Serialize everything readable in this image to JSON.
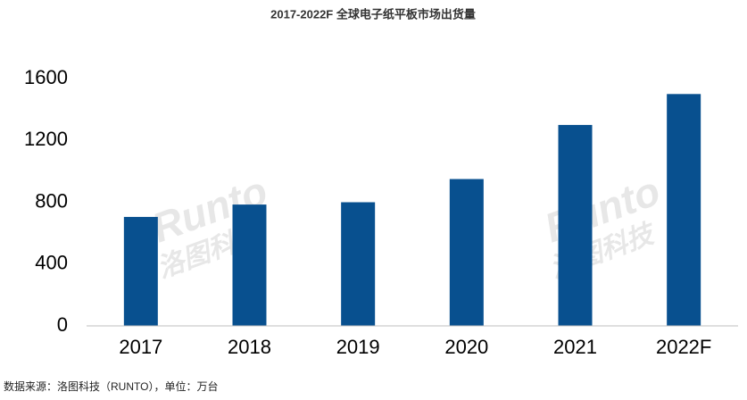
{
  "chart_data": {
    "type": "bar",
    "title": "2017-2022F 全球电子纸平板市场出货量",
    "categories": [
      "2017",
      "2018",
      "2019",
      "2020",
      "2021",
      "2022F"
    ],
    "values": [
      705,
      785,
      800,
      950,
      1300,
      1500
    ],
    "color": "#08508f",
    "ylim": [
      0,
      1600
    ],
    "yticks": [
      0,
      400,
      800,
      1200,
      1600
    ],
    "grid": false,
    "source": "数据来源：洛图科技（RUNTO），单位：万台",
    "watermark": {
      "brand": "Runto",
      "name": "洛图科技"
    }
  }
}
